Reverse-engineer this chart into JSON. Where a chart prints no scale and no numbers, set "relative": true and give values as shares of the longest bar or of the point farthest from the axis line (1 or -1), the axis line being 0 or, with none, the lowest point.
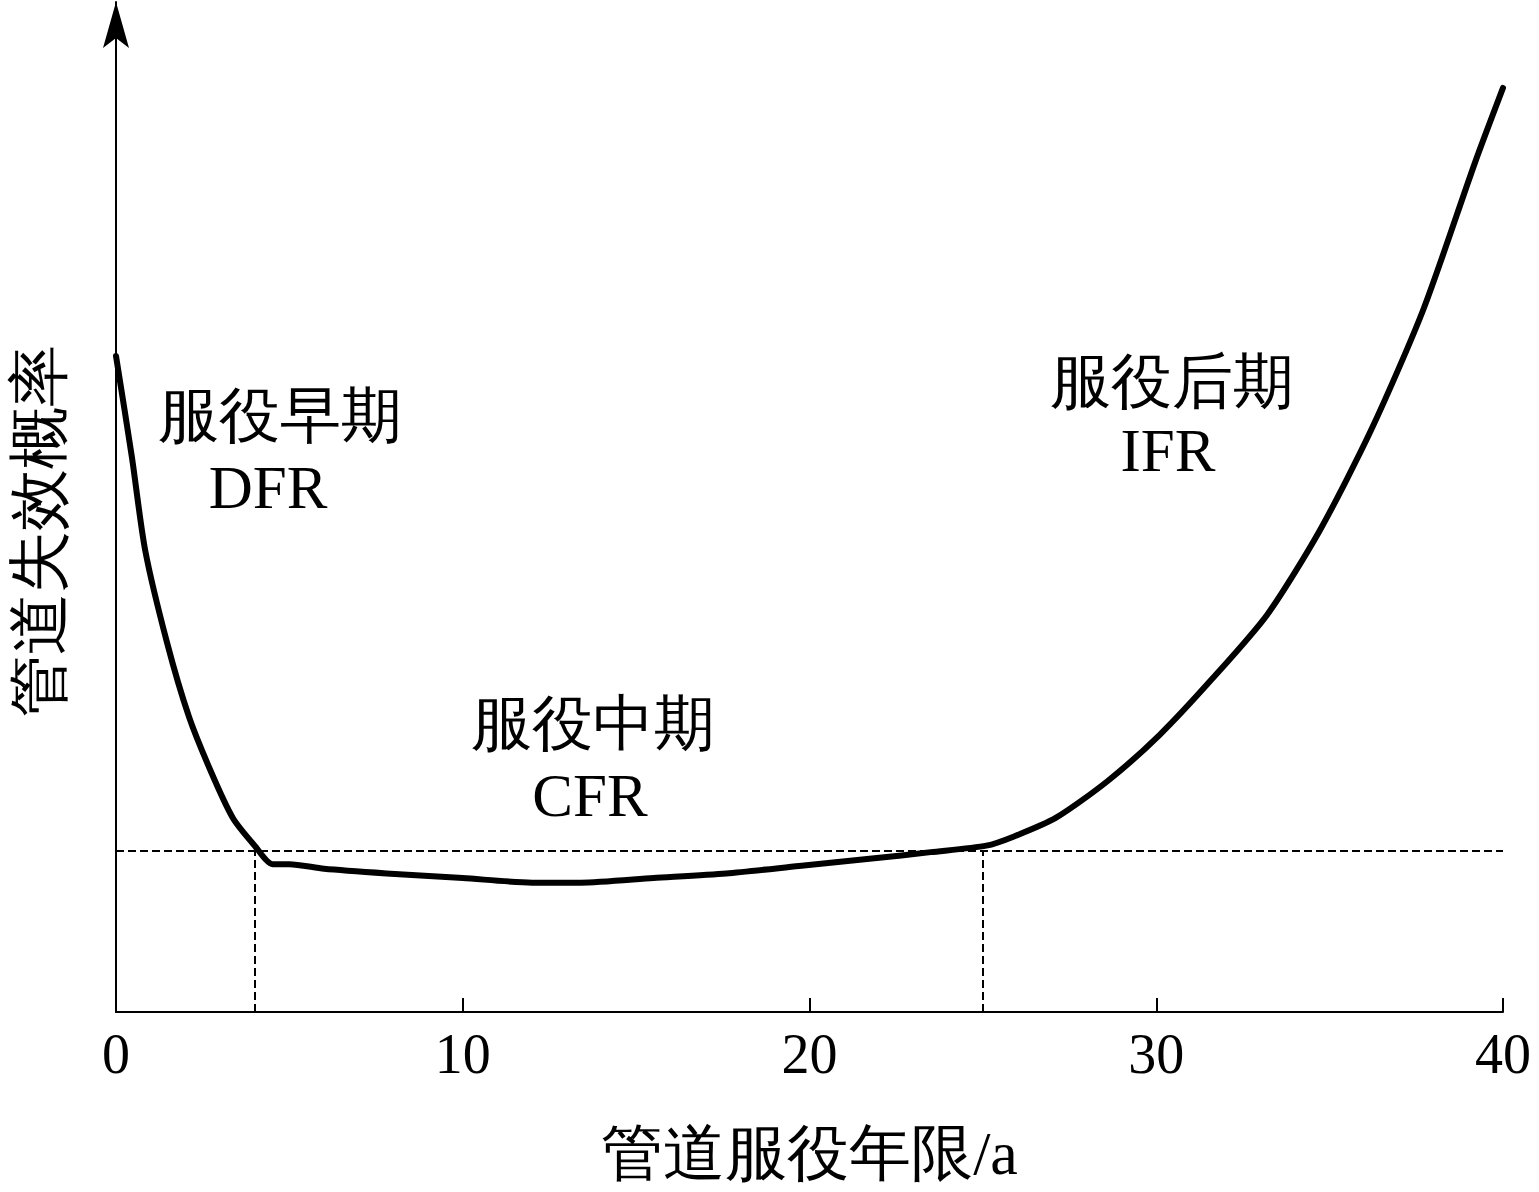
{
  "chart_data": {
    "type": "line",
    "xlabel": "管道服役年限/a",
    "ylabel": "管道失效概率",
    "relative": true,
    "marker": "none",
    "line_style": "solid",
    "color": "#000000",
    "x": [
      0,
      0.46,
      0.84,
      1.47,
      2.1,
      2.74,
      3.37,
      4.0,
      4.52,
      5.0,
      6.0,
      7.8,
      10.0,
      12.0,
      13.4,
      15.5,
      17.6,
      19.7,
      21.8,
      23.5,
      25.1,
      25.9,
      27.1,
      28.6,
      30.1,
      31.6,
      33.2,
      34.7,
      36.2,
      37.7,
      39.2,
      40
    ],
    "values": [
      0.71,
      0.6,
      0.5,
      0.4,
      0.32,
      0.26,
      0.21,
      0.18,
      0.16,
      0.16,
      0.155,
      0.15,
      0.145,
      0.14,
      0.14,
      0.145,
      0.15,
      0.158,
      0.166,
      0.173,
      0.18,
      0.19,
      0.21,
      0.25,
      0.3,
      0.36,
      0.43,
      0.52,
      0.63,
      0.76,
      0.92,
      1
    ],
    "xlim": [
      0,
      40
    ],
    "xticks": [
      0,
      10,
      20,
      30,
      40
    ],
    "ref_lines": [
      {
        "axis": "y",
        "value": 0.175,
        "color": "#000000",
        "line_style": "dashed"
      },
      {
        "axis": "x",
        "value": 4,
        "color": "#000000",
        "line_style": "dashed"
      },
      {
        "axis": "x",
        "value": 25,
        "color": "#000000",
        "line_style": "dashed"
      }
    ],
    "annotations": [
      "服役早期",
      "DFR",
      "服役中期",
      "CFR",
      "服役后期",
      "IFR"
    ]
  }
}
